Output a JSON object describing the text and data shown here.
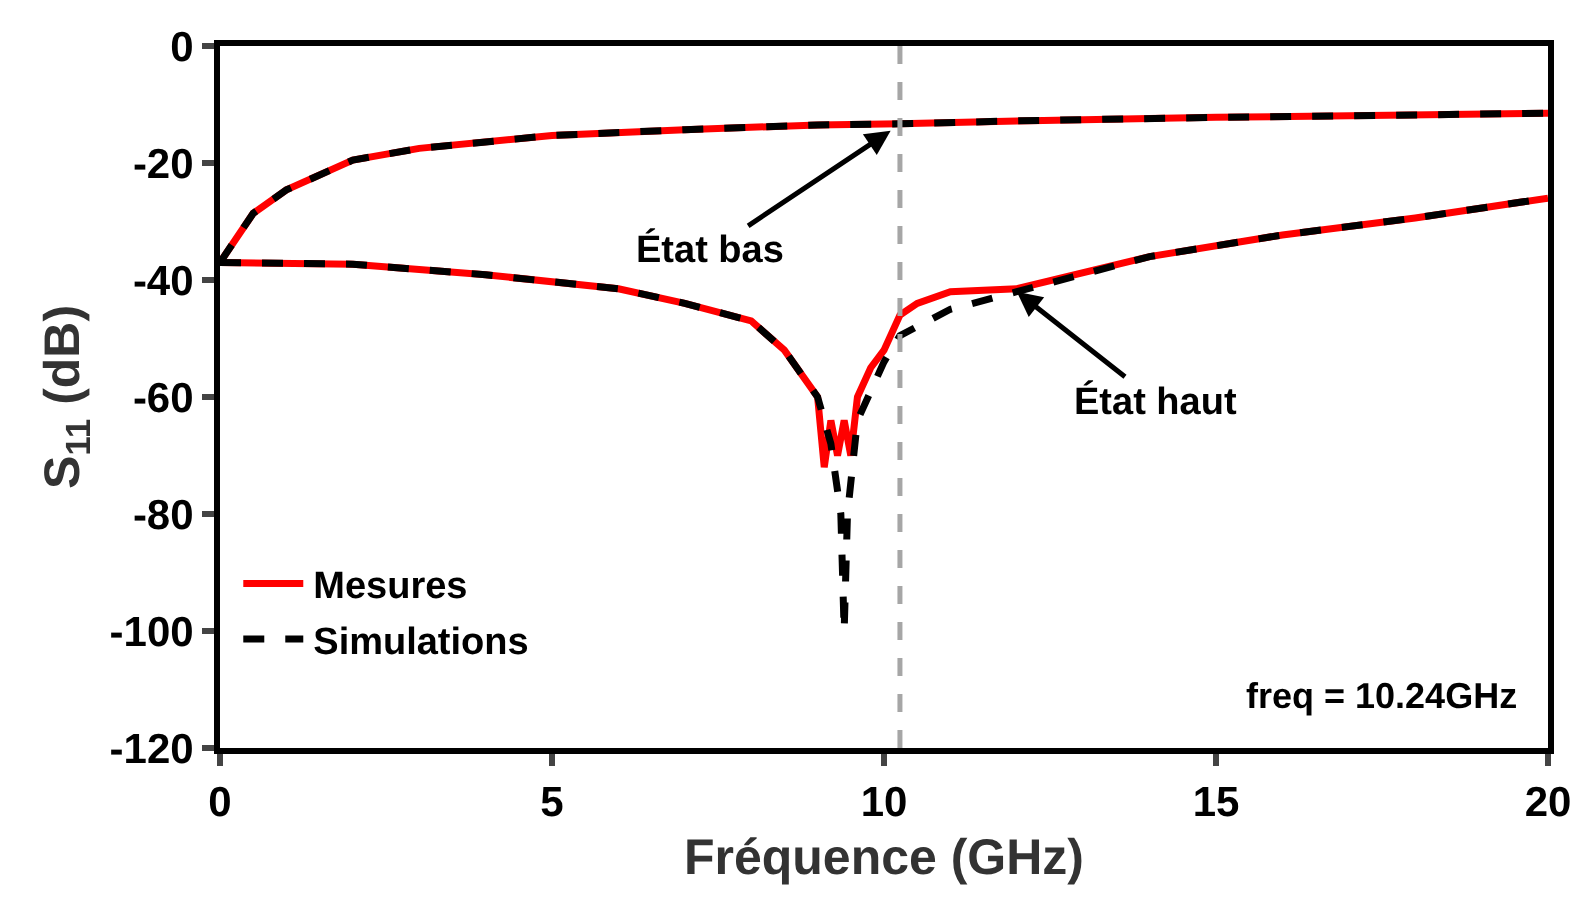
{
  "chart_data": {
    "type": "line",
    "xlabel": "Fréquence (GHz)",
    "ylabel": "S$_{11}$ (dB)",
    "xlim": [
      0,
      20
    ],
    "xticks": [
      0,
      5,
      10,
      15,
      20
    ],
    "ylim": [
      -120,
      0
    ],
    "yticks": [
      -120,
      -100,
      -80,
      -60,
      -40,
      -20,
      0
    ],
    "legend": "bottom left",
    "series": [
      {
        "name": "Mesures",
        "color": "#ff0000",
        "line_style": "solid",
        "x": [
          0,
          0.5,
          1,
          2,
          3,
          5,
          7,
          9,
          10.24,
          12,
          15,
          20
        ],
        "values": [
          -37,
          -28.6,
          -24.6,
          -19.5,
          -17.5,
          -15.3,
          -14.3,
          -13.5,
          -13.3,
          -12.8,
          -12.2,
          -11.5
        ]
      },
      {
        "color": "#ff0000",
        "line_style": "solid",
        "x": [
          0,
          2,
          4,
          6,
          7,
          8,
          8.5,
          9,
          9.1,
          9.2,
          9.3,
          9.4,
          9.5,
          9.6,
          9.8,
          10,
          10.24,
          10.5,
          11,
          12,
          14,
          16,
          18,
          20
        ],
        "values": [
          -37,
          -37.3,
          -39.1,
          -41.5,
          -44,
          -47,
          -52,
          -60,
          -72,
          -64,
          -70,
          -64,
          -70,
          -60,
          -55,
          -52,
          -46,
          -44,
          -42,
          -41.5,
          -36,
          -32.3,
          -29.4,
          -26
        ]
      },
      {
        "name": "Simulations",
        "color": "#000000",
        "line_style": "dashed",
        "x": [
          0,
          0.5,
          1,
          2,
          3,
          5,
          7,
          9,
          10.24,
          12,
          15,
          20
        ],
        "values": [
          -37,
          -28.6,
          -24.6,
          -19.5,
          -17.5,
          -15.3,
          -14.3,
          -13.5,
          -13.3,
          -12.8,
          -12.2,
          -11.5
        ]
      },
      {
        "color": "#000000",
        "line_style": "dashed",
        "x": [
          0,
          2,
          4,
          6,
          7,
          8,
          8.5,
          9,
          9.2,
          9.35,
          9.4,
          9.45,
          9.6,
          10,
          10.24,
          11,
          12,
          14,
          16,
          18,
          20
        ],
        "values": [
          -37,
          -37.3,
          -39.1,
          -41.5,
          -44,
          -47,
          -52,
          -60,
          -68,
          -80,
          -100,
          -80,
          -64,
          -54,
          -49.5,
          -45,
          -42,
          -36,
          -32.3,
          -29.4,
          -26
        ]
      }
    ],
    "ref_lines": [
      {
        "axis": "x",
        "value": 10.24,
        "color": "#a6a6a6",
        "line_style": "dashed"
      }
    ],
    "annotations": [
      {
        "text": "État bas",
        "x": 10.1,
        "y": -14.5
      },
      {
        "text": "État haut",
        "x": 12,
        "y": -42
      },
      "freq = 10.24GHz"
    ]
  }
}
